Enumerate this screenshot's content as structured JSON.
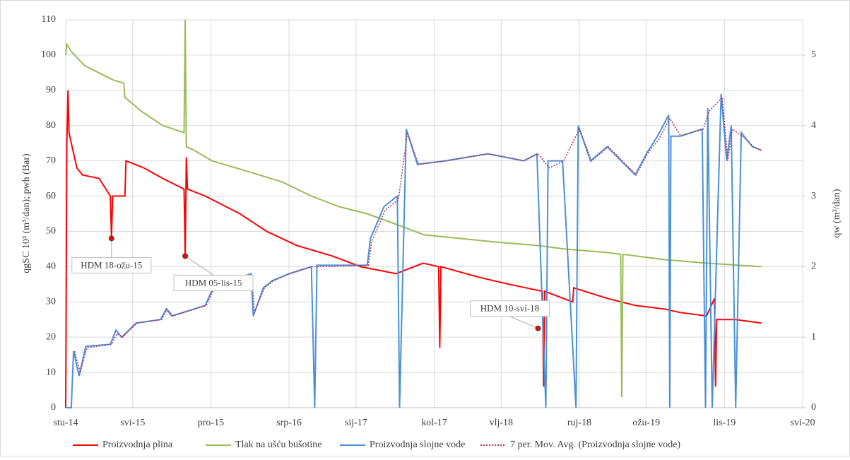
{
  "chart_data": {
    "type": "line",
    "y_label": "qgSC 10³ (m³/dan); pwh (Bar)",
    "y2_label": "qw (m³/dan)",
    "xlim": [
      0,
      66
    ],
    "xticks": [
      {
        "value": 0,
        "label": "stu-14"
      },
      {
        "value": 6,
        "label": "svi-15"
      },
      {
        "value": 13,
        "label": "pro-15"
      },
      {
        "value": 20,
        "label": "srp-16"
      },
      {
        "value": 26,
        "label": "sij-17"
      },
      {
        "value": 33,
        "label": "kol-17"
      },
      {
        "value": 39,
        "label": "vlj-18"
      },
      {
        "value": 46,
        "label": "ruj-18"
      },
      {
        "value": 52,
        "label": "ožu-19"
      },
      {
        "value": 59,
        "label": "lis-19"
      },
      {
        "value": 66,
        "label": "svi-20"
      }
    ],
    "ylim": [
      0,
      110
    ],
    "yticks": [
      0,
      10,
      20,
      30,
      40,
      50,
      60,
      70,
      80,
      90,
      100,
      110
    ],
    "y2lim": [
      0,
      5.5
    ],
    "y2ticks": [
      0,
      1,
      2,
      3,
      4,
      5
    ],
    "grid": true,
    "legend": "bottom",
    "series": [
      {
        "name": "Proizvodnja plina",
        "color": "#ff0000",
        "x": [
          0,
          0.1,
          0.2,
          0.3,
          0.5,
          1.0,
          1.5,
          3.0,
          4.0,
          4.1,
          4.2,
          5.0,
          5.3,
          5.4,
          7.0,
          8.7,
          10.6,
          10.7,
          10.8,
          10.9,
          12.5,
          15.6,
          18.0,
          20.7,
          23.9,
          26.4,
          29.6,
          32.0,
          33.4,
          33.5,
          33.6,
          37.0,
          39.7,
          42.7,
          42.8,
          42.9,
          45.4,
          45.5,
          48.5,
          51.0,
          53.6,
          55.0,
          57.4,
          58.1,
          58.2,
          58.3,
          60.0,
          62.3
        ],
        "values": [
          0,
          75,
          90,
          78,
          75,
          68,
          66,
          65,
          60,
          48,
          60,
          60,
          60,
          70,
          68,
          65,
          62,
          43,
          71,
          62,
          60,
          55,
          50,
          46,
          43,
          40,
          38,
          41,
          40,
          17,
          40,
          37,
          35,
          33,
          6,
          33,
          30,
          34,
          31,
          29,
          28,
          27,
          26,
          31,
          6,
          25,
          25,
          24
        ],
        "axis": "y"
      },
      {
        "name": "Tlak na ušću bušotine",
        "color": "#9bbb59",
        "x": [
          0,
          0.1,
          0.5,
          1.7,
          4.2,
          5.2,
          5.3,
          6.8,
          8.7,
          10.6,
          10.7,
          10.8,
          11.5,
          13.1,
          16.3,
          19.4,
          22.0,
          24.5,
          27.0,
          29.6,
          32.1,
          35.3,
          38.4,
          42.2,
          44.7,
          48.5,
          49.7,
          49.8,
          49.9,
          53.6,
          57.4,
          62.3
        ],
        "values": [
          100,
          103,
          101,
          97,
          93,
          92,
          88,
          84,
          80,
          78,
          110,
          74,
          73,
          70,
          67,
          64,
          60,
          57,
          55,
          52,
          49,
          48,
          47,
          46,
          45,
          44,
          43.5,
          3,
          43.5,
          42,
          41,
          40
        ],
        "axis": "y"
      },
      {
        "name": "Proizvodnja slojne vode",
        "color": "#4a90d9",
        "x": [
          0,
          0.5,
          0.7,
          1.2,
          1.8,
          4.0,
          4.5,
          5.0,
          6.3,
          8.5,
          9.0,
          9.5,
          12.5,
          13.2,
          16.6,
          16.8,
          17.7,
          18.5,
          20.0,
          22.0,
          22.3,
          22.5,
          27.0,
          27.3,
          28.5,
          29.7,
          29.9,
          30.5,
          31.5,
          34.0,
          37.8,
          41.0,
          42.2,
          43.0,
          43.2,
          44.5,
          45.7,
          45.9,
          47.0,
          48.5,
          51.0,
          52.0,
          53.0,
          54.0,
          54.1,
          54.2,
          55.0,
          57.0,
          57.3,
          57.5,
          57.9,
          58.7,
          59.2,
          59.6,
          60.0,
          60.5,
          61.5,
          62.3
        ],
        "values": [
          0,
          0,
          0.8,
          0.45,
          0.87,
          0.9,
          1.1,
          1.0,
          1.2,
          1.25,
          1.4,
          1.3,
          1.45,
          1.7,
          1.9,
          1.3,
          1.7,
          1.8,
          1.9,
          2.0,
          0,
          2.02,
          2.02,
          2.4,
          2.85,
          3.0,
          0,
          3.95,
          3.45,
          3.5,
          3.6,
          3.5,
          3.6,
          0,
          3.5,
          3.5,
          0,
          4.0,
          3.5,
          3.7,
          3.3,
          3.6,
          3.85,
          4.15,
          0,
          3.85,
          3.85,
          3.95,
          0,
          4.25,
          0,
          4.45,
          3.5,
          4.0,
          0,
          3.9,
          3.7,
          3.65
        ],
        "axis": "y2"
      },
      {
        "name": "7 per. Mov. Avg. (Proizvodnja slojne vode)",
        "color": "#b03060",
        "dash": "2,2",
        "x": [
          0.8,
          1.3,
          1.9,
          4.1,
          4.6,
          5.1,
          6.4,
          8.6,
          9.1,
          9.6,
          12.6,
          13.3,
          16.7,
          16.9,
          17.8,
          18.6,
          20.1,
          22.1,
          22.6,
          27.1,
          27.4,
          28.6,
          29.8,
          30.6,
          31.6,
          34.1,
          37.9,
          41.1,
          42.3,
          43.3,
          44.6,
          46.0,
          47.1,
          48.6,
          51.1,
          52.1,
          53.1,
          54.1,
          55.1,
          57.1,
          57.6,
          58.8,
          59.3,
          59.7,
          60.6,
          61.6,
          62.3
        ],
        "values": [
          0.8,
          0.5,
          0.85,
          0.9,
          1.05,
          1.0,
          1.2,
          1.25,
          1.4,
          1.3,
          1.45,
          1.7,
          1.85,
          1.35,
          1.7,
          1.8,
          1.9,
          2.0,
          2.0,
          2.02,
          2.35,
          2.8,
          2.95,
          3.9,
          3.45,
          3.5,
          3.6,
          3.5,
          3.6,
          3.4,
          3.5,
          3.95,
          3.5,
          3.7,
          3.3,
          3.6,
          3.8,
          4.1,
          3.85,
          3.95,
          4.2,
          4.4,
          3.5,
          3.95,
          3.85,
          3.7,
          3.65
        ],
        "axis": "y2"
      }
    ],
    "annotations": [
      {
        "text": "HDM 18-ožu-15",
        "x": 4.1,
        "y": 48
      },
      {
        "text": "HDM 05-lis-15",
        "x": 10.7,
        "y": 43
      },
      {
        "text": "HDM 10-svi-18",
        "x": 42.3,
        "y": 22.5
      }
    ]
  }
}
